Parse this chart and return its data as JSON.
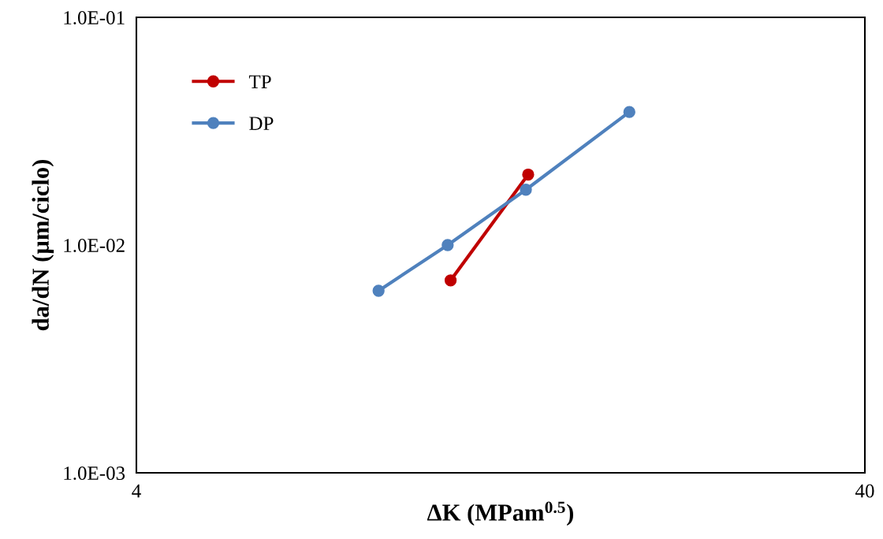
{
  "chart_data": {
    "type": "line",
    "xlabel": "ΔK (MPam$^{0.5}$)",
    "ylabel": "da/dN (µm/ciclo)",
    "log": "xy",
    "xlim": [
      4,
      40
    ],
    "xticks": [
      4,
      40
    ],
    "ylim": [
      0.001,
      0.1
    ],
    "yticks": [
      {
        "value": 0.001,
        "label": "1.0E-03"
      },
      {
        "value": 0.01,
        "label": "1.0E-02"
      },
      {
        "value": 0.1,
        "label": "1.0E-01"
      }
    ],
    "grid": false,
    "legend": "top left",
    "marker": "circle",
    "line_style": "solid",
    "series": [
      {
        "name": "TP",
        "color": "#c00000",
        "x": [
          10.8,
          13.8
        ],
        "values": [
          0.007,
          0.0204
        ]
      },
      {
        "name": "DP",
        "color": "#4f81bd",
        "x": [
          8.6,
          10.7,
          13.7,
          19.0
        ],
        "values": [
          0.0063,
          0.01,
          0.0175,
          0.0384
        ]
      }
    ]
  }
}
